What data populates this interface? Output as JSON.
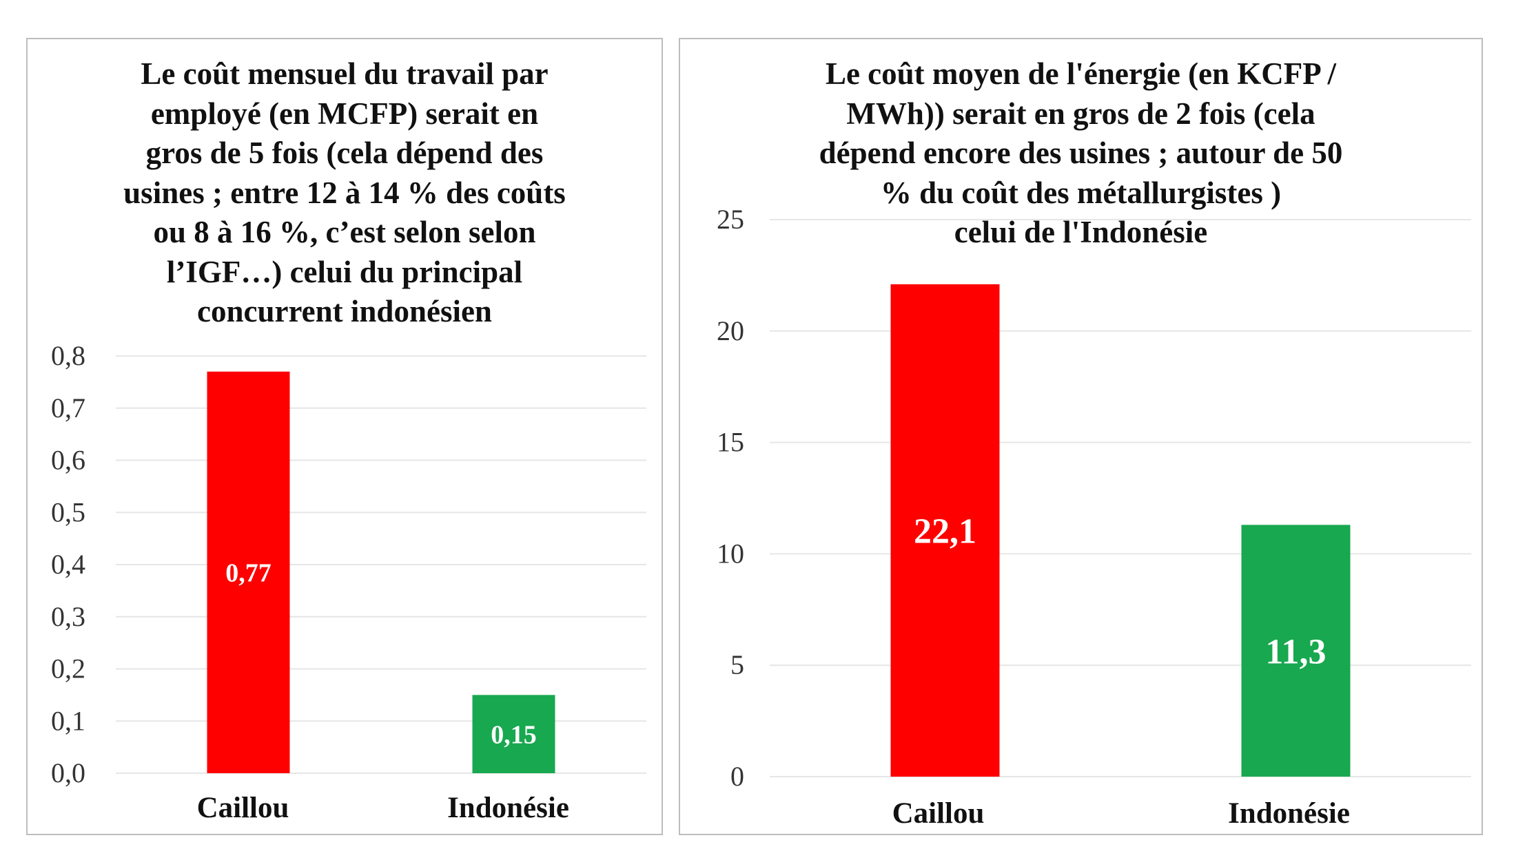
{
  "colors": {
    "red": "#ff0000",
    "green": "#18a84f",
    "grid": "#e6e6e6",
    "border": "#bdbdbd"
  },
  "chart_data": [
    {
      "type": "bar",
      "title_lines": [
        "Le coût mensuel du travail par",
        "employé (en MCFP) serait en",
        "gros de 5 fois (cela dépend des",
        "usines ; entre 12 à 14 % des coûts",
        "ou 8 à 16 %, c’est selon selon",
        "l’IGF…) celui du principal",
        "concurrent indonésien"
      ],
      "categories": [
        "Caillou",
        "Indonésie"
      ],
      "values": [
        0.77,
        0.15
      ],
      "data_labels": [
        "0,77",
        "0,15"
      ],
      "bar_colors": [
        "#ff0000",
        "#18a84f"
      ],
      "ylim": [
        0,
        0.8
      ],
      "yticks": [
        0,
        0.1,
        0.2,
        0.3,
        0.4,
        0.5,
        0.6,
        0.7,
        0.8
      ],
      "ytick_labels": [
        "0,0",
        "0,1",
        "0,2",
        "0,3",
        "0,4",
        "0,5",
        "0,6",
        "0,7",
        "0,8"
      ],
      "grid": true,
      "legend": "none",
      "xlabel": "",
      "ylabel": ""
    },
    {
      "type": "bar",
      "title_lines": [
        "Le coût moyen de l'énergie (en KCFP /",
        "MWh)) serait en gros de 2 fois (cela",
        "dépend encore des  usines ; autour de 50",
        "% du coût des métallurgistes )",
        "celui de l'Indonésie"
      ],
      "categories": [
        "Caillou",
        "Indonésie"
      ],
      "values": [
        22.1,
        11.3
      ],
      "data_labels": [
        "22,1",
        "11,3"
      ],
      "bar_colors": [
        "#ff0000",
        "#18a84f"
      ],
      "ylim": [
        0,
        25
      ],
      "yticks": [
        0,
        5,
        10,
        15,
        20,
        25
      ],
      "ytick_labels": [
        "0",
        "5",
        "10",
        "15",
        "20",
        "25"
      ],
      "grid": true,
      "legend": "none",
      "xlabel": "",
      "ylabel": ""
    }
  ]
}
